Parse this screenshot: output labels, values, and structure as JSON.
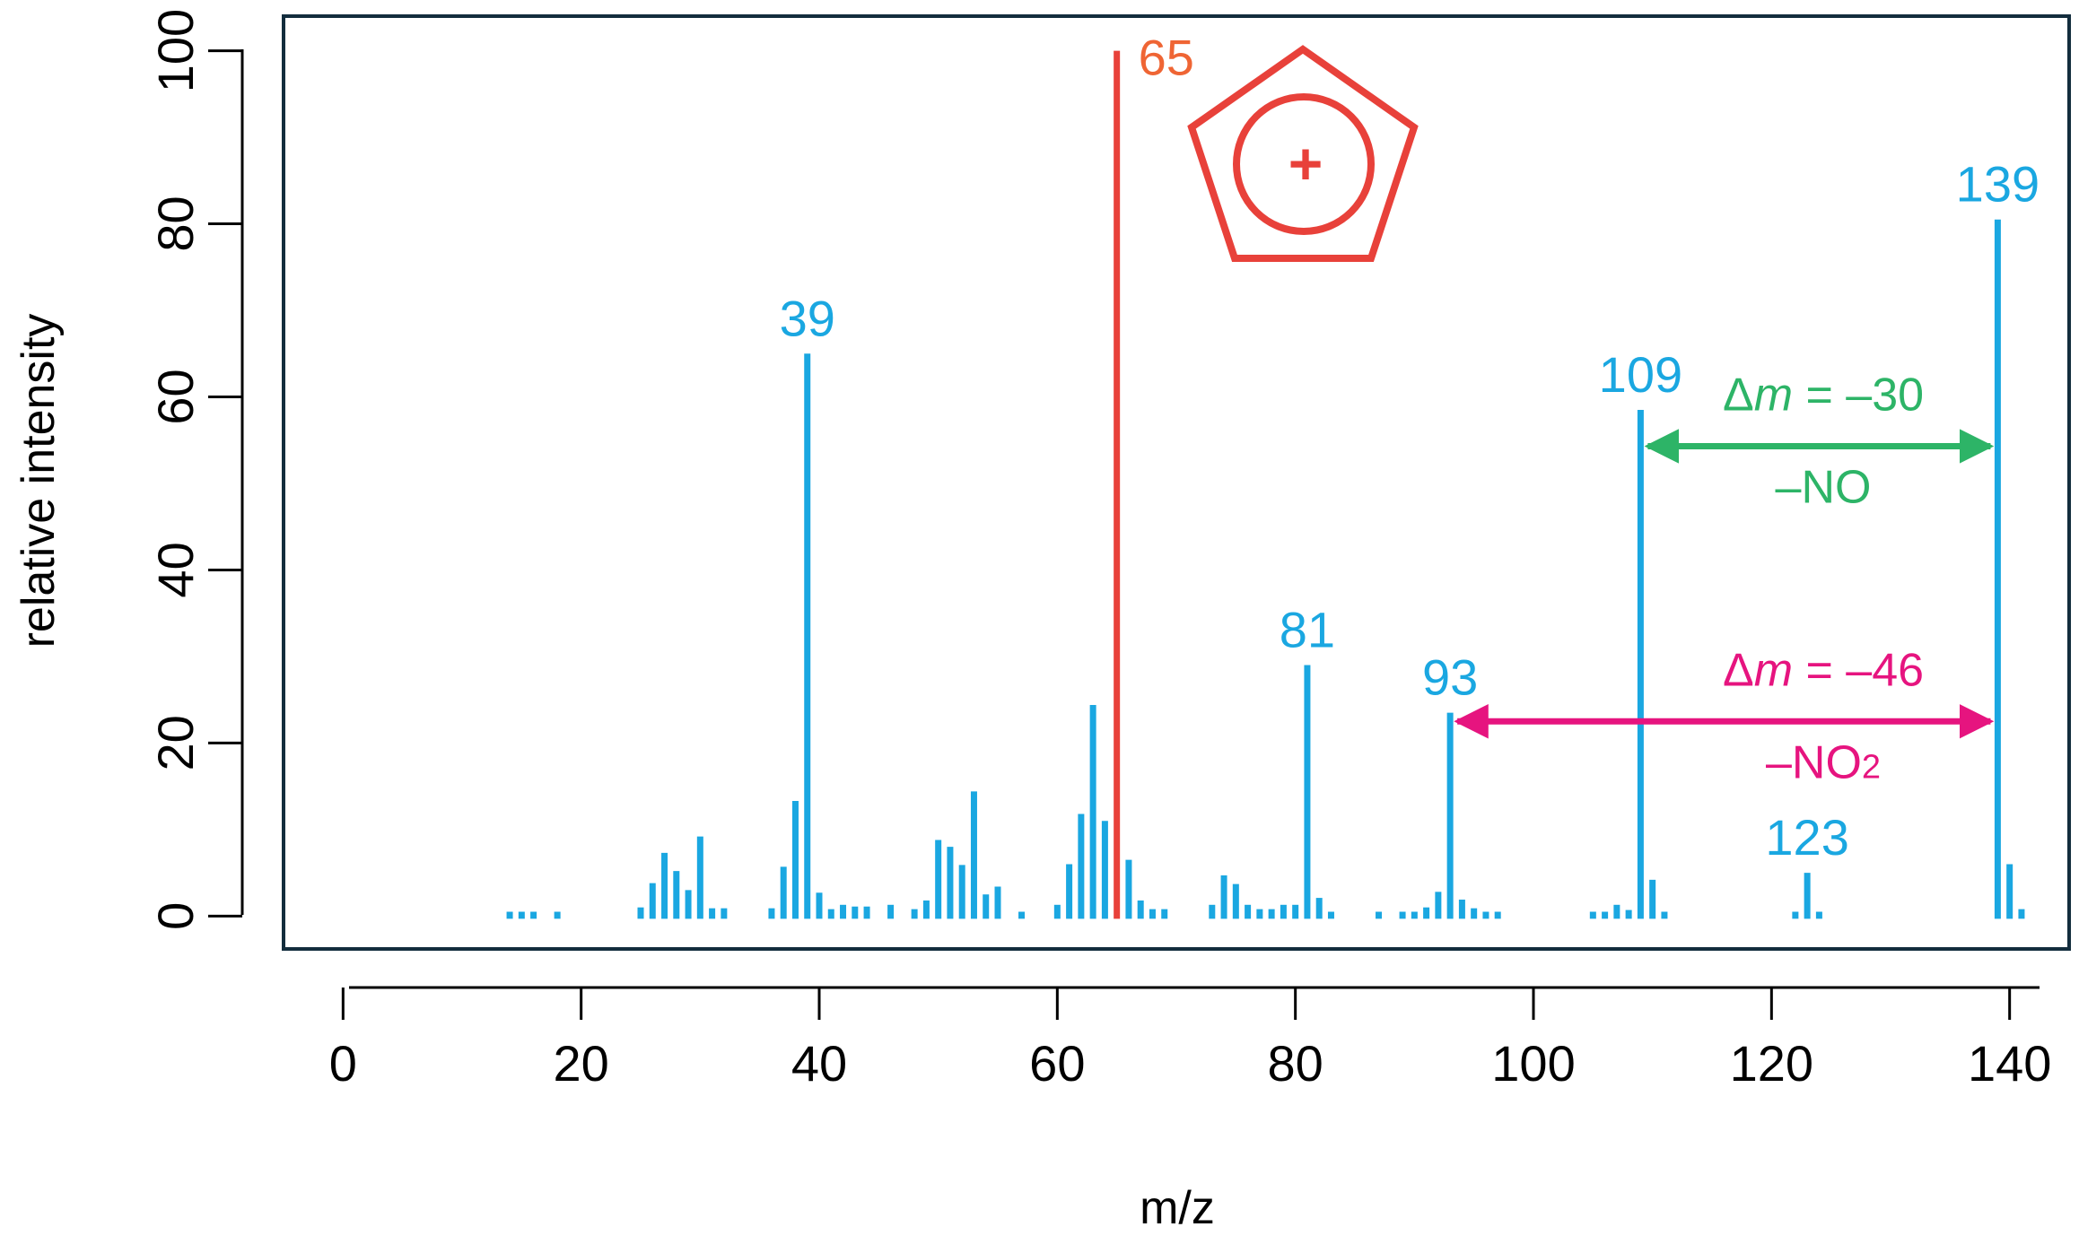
{
  "chart_data": {
    "type": "bar",
    "title": "",
    "xlabel": "m/z",
    "ylabel": "relative intensity",
    "xlim": [
      -5,
      145
    ],
    "ylim": [
      -3.8,
      104.0
    ],
    "xticks": [
      0,
      20,
      40,
      60,
      80,
      100,
      120,
      140
    ],
    "yticks": [
      0,
      20,
      40,
      60,
      80,
      100
    ],
    "grid": false,
    "colors": {
      "peaks": "#1aa7e1",
      "base_peak": "#e8413a",
      "base_label": "#ef6534",
      "loss_no": "#2db467",
      "loss_no2": "#e6147f",
      "axis": "#000000",
      "frame": "#132d3d"
    },
    "base_peak": {
      "mz": 65,
      "intensity": 100,
      "label": "65"
    },
    "peaks": [
      {
        "mz": 14,
        "intensity": 0.5
      },
      {
        "mz": 15,
        "intensity": 0.5
      },
      {
        "mz": 16,
        "intensity": 0.5
      },
      {
        "mz": 18,
        "intensity": 0.5
      },
      {
        "mz": 25,
        "intensity": 1.0
      },
      {
        "mz": 26,
        "intensity": 3.8
      },
      {
        "mz": 27,
        "intensity": 7.3
      },
      {
        "mz": 28,
        "intensity": 5.2
      },
      {
        "mz": 29,
        "intensity": 3.0
      },
      {
        "mz": 30,
        "intensity": 9.2
      },
      {
        "mz": 31,
        "intensity": 0.9
      },
      {
        "mz": 32,
        "intensity": 0.9
      },
      {
        "mz": 36,
        "intensity": 0.9
      },
      {
        "mz": 37,
        "intensity": 5.7
      },
      {
        "mz": 38,
        "intensity": 13.3
      },
      {
        "mz": 39,
        "intensity": 65.0
      },
      {
        "mz": 40,
        "intensity": 2.7
      },
      {
        "mz": 41,
        "intensity": 0.8
      },
      {
        "mz": 42,
        "intensity": 1.3
      },
      {
        "mz": 43,
        "intensity": 1.1
      },
      {
        "mz": 44,
        "intensity": 1.1
      },
      {
        "mz": 46,
        "intensity": 1.3
      },
      {
        "mz": 48,
        "intensity": 0.8
      },
      {
        "mz": 49,
        "intensity": 1.8
      },
      {
        "mz": 50,
        "intensity": 8.8
      },
      {
        "mz": 51,
        "intensity": 8.0
      },
      {
        "mz": 52,
        "intensity": 5.9
      },
      {
        "mz": 53,
        "intensity": 14.4
      },
      {
        "mz": 54,
        "intensity": 2.5
      },
      {
        "mz": 55,
        "intensity": 3.4
      },
      {
        "mz": 57,
        "intensity": 0.5
      },
      {
        "mz": 60,
        "intensity": 1.3
      },
      {
        "mz": 61,
        "intensity": 6.0
      },
      {
        "mz": 62,
        "intensity": 11.8
      },
      {
        "mz": 63,
        "intensity": 24.4
      },
      {
        "mz": 64,
        "intensity": 11.0
      },
      {
        "mz": 66,
        "intensity": 6.5
      },
      {
        "mz": 67,
        "intensity": 1.8
      },
      {
        "mz": 68,
        "intensity": 0.8
      },
      {
        "mz": 69,
        "intensity": 0.8
      },
      {
        "mz": 73,
        "intensity": 1.3
      },
      {
        "mz": 74,
        "intensity": 4.7
      },
      {
        "mz": 75,
        "intensity": 3.7
      },
      {
        "mz": 76,
        "intensity": 1.3
      },
      {
        "mz": 77,
        "intensity": 0.8
      },
      {
        "mz": 78,
        "intensity": 0.8
      },
      {
        "mz": 79,
        "intensity": 1.3
      },
      {
        "mz": 80,
        "intensity": 1.3
      },
      {
        "mz": 81,
        "intensity": 29.0
      },
      {
        "mz": 82,
        "intensity": 2.1
      },
      {
        "mz": 83,
        "intensity": 0.5
      },
      {
        "mz": 87,
        "intensity": 0.5
      },
      {
        "mz": 89,
        "intensity": 0.5
      },
      {
        "mz": 90,
        "intensity": 0.5
      },
      {
        "mz": 91,
        "intensity": 1.0
      },
      {
        "mz": 92,
        "intensity": 2.8
      },
      {
        "mz": 93,
        "intensity": 23.5
      },
      {
        "mz": 94,
        "intensity": 1.9
      },
      {
        "mz": 95,
        "intensity": 0.9
      },
      {
        "mz": 96,
        "intensity": 0.5
      },
      {
        "mz": 97,
        "intensity": 0.5
      },
      {
        "mz": 105,
        "intensity": 0.5
      },
      {
        "mz": 106,
        "intensity": 0.5
      },
      {
        "mz": 107,
        "intensity": 1.3
      },
      {
        "mz": 108,
        "intensity": 0.7
      },
      {
        "mz": 109,
        "intensity": 58.5
      },
      {
        "mz": 110,
        "intensity": 4.2
      },
      {
        "mz": 111,
        "intensity": 0.5
      },
      {
        "mz": 122,
        "intensity": 0.5
      },
      {
        "mz": 123,
        "intensity": 5.0
      },
      {
        "mz": 124,
        "intensity": 0.5
      },
      {
        "mz": 139,
        "intensity": 80.5
      },
      {
        "mz": 140,
        "intensity": 6.0
      },
      {
        "mz": 141,
        "intensity": 0.8
      }
    ],
    "peak_labels": [
      {
        "mz": 39,
        "label": "39"
      },
      {
        "mz": 81,
        "label": "81"
      },
      {
        "mz": 93,
        "label": "93"
      },
      {
        "mz": 109,
        "label": "109"
      },
      {
        "mz": 123,
        "label": "123"
      },
      {
        "mz": 139,
        "label": "139"
      }
    ],
    "annotations": {
      "loss_no": {
        "from_mz": 109,
        "to_mz": 139,
        "at_intensity": 54.3,
        "delta_prefix": "Δ",
        "delta_var": "m",
        "delta_value": " = –30",
        "fragment": "–NO"
      },
      "loss_no2": {
        "from_mz": 93,
        "to_mz": 139,
        "at_intensity": 22.5,
        "delta_prefix": "Δ",
        "delta_var": "m",
        "delta_value": " = –46",
        "fragment_main": "–NO",
        "fragment_sub": "2"
      },
      "structure": {
        "name": "cyclopentadienyl cation",
        "charge_symbol": "+"
      }
    }
  }
}
